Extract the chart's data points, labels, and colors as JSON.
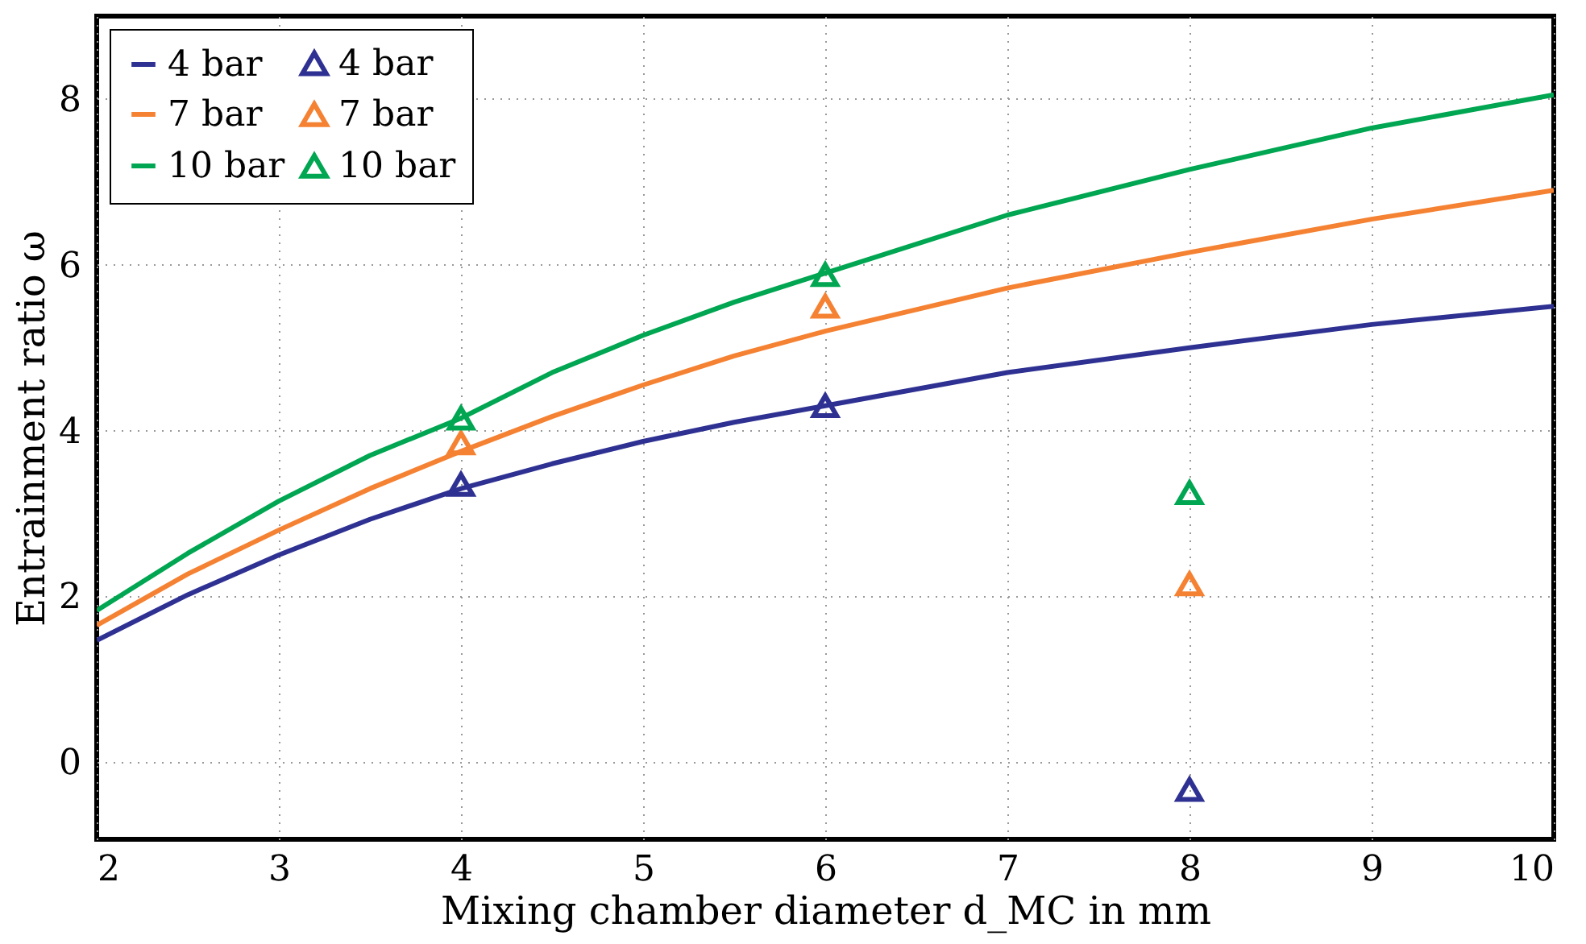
{
  "chart_data": {
    "type": "line",
    "xlabel": "Mixing chamber diameter d_MC in mm",
    "ylabel": "Entrainment ratio ω",
    "xlim": [
      2,
      10
    ],
    "ylim": [
      -0.93,
      9
    ],
    "xticks": [
      2,
      3,
      4,
      5,
      6,
      7,
      8,
      9,
      10
    ],
    "yticks": [
      0,
      2,
      4,
      6,
      8
    ],
    "grid": true,
    "legend": "top left",
    "line_style": "solid",
    "series": [
      {
        "name": "4 bar",
        "color": "#2e3192",
        "x": [
          2,
          2.5,
          3,
          3.5,
          4,
          4.5,
          5,
          5.5,
          6,
          7,
          8,
          9,
          10
        ],
        "values": [
          1.47,
          2.02,
          2.5,
          2.93,
          3.3,
          3.6,
          3.87,
          4.1,
          4.3,
          4.7,
          5.0,
          5.28,
          5.5
        ]
      },
      {
        "name": "4 bar",
        "type": "scatter",
        "marker": "triangle",
        "color": "#2e3192",
        "x": [
          4,
          6,
          8
        ],
        "values": [
          3.35,
          4.3,
          -0.33
        ]
      },
      {
        "name": "7 bar",
        "color": "#f58233",
        "x": [
          2,
          2.5,
          3,
          3.5,
          4,
          4.5,
          5,
          5.5,
          6,
          7,
          8,
          9,
          10
        ],
        "values": [
          1.65,
          2.27,
          2.8,
          3.3,
          3.75,
          4.17,
          4.55,
          4.9,
          5.2,
          5.72,
          6.15,
          6.55,
          6.9
        ]
      },
      {
        "name": "7 bar",
        "type": "scatter",
        "marker": "triangle",
        "color": "#f58233",
        "x": [
          4,
          6,
          8
        ],
        "values": [
          3.85,
          5.5,
          2.15
        ]
      },
      {
        "name": "10 bar",
        "color": "#00a651",
        "x": [
          2,
          2.5,
          3,
          3.5,
          4,
          4.5,
          5,
          5.5,
          6,
          7,
          8,
          9,
          10
        ],
        "values": [
          1.83,
          2.52,
          3.15,
          3.7,
          4.15,
          4.7,
          5.15,
          5.55,
          5.9,
          6.6,
          7.15,
          7.65,
          8.05
        ]
      },
      {
        "name": "10 bar",
        "type": "scatter",
        "marker": "triangle",
        "color": "#00a651",
        "x": [
          4,
          6,
          8
        ],
        "values": [
          4.15,
          5.88,
          3.25
        ]
      }
    ]
  }
}
